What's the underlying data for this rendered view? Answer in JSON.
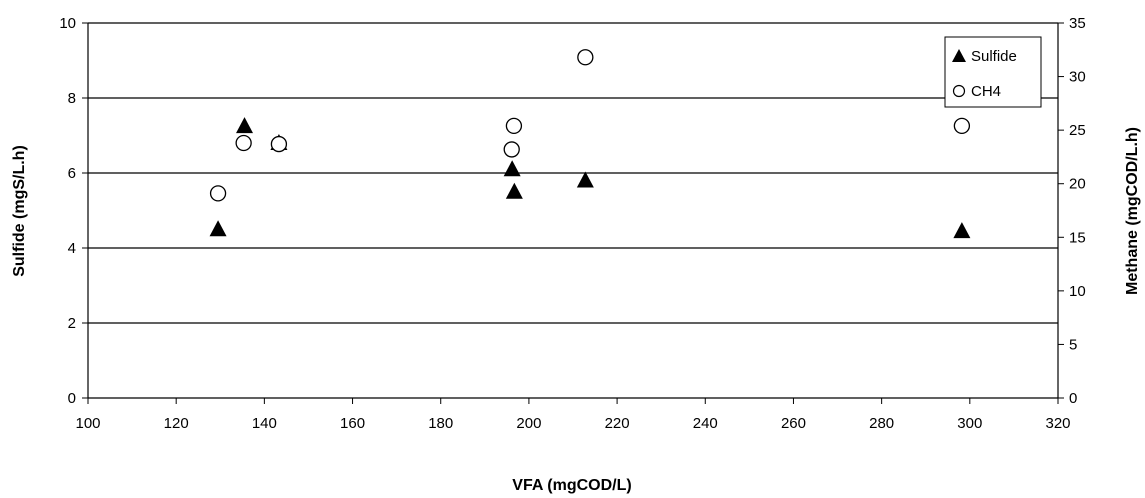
{
  "chart_data": {
    "type": "scatter",
    "xlabel": "VFA (mgCOD/L)",
    "ylabel": "Sulfide (mgS/L.h)",
    "y2label": "Methane (mgCOD/L.h)",
    "xlim": [
      100,
      320
    ],
    "ylim": [
      0,
      10
    ],
    "y2lim": [
      0,
      35
    ],
    "xticks": [
      "100",
      "120",
      "140",
      "160",
      "180",
      "200",
      "220",
      "240",
      "260",
      "280",
      "300",
      "320"
    ],
    "yticks": [
      "0",
      "2",
      "4",
      "6",
      "8",
      "10"
    ],
    "y2ticks": [
      "0",
      "5",
      "10",
      "15",
      "20",
      "25",
      "30",
      "35"
    ],
    "grid": "horizontal",
    "legend_position": "top-right",
    "series": [
      {
        "name": "Sulfide",
        "axis": "left",
        "marker": "filled-triangle",
        "color": "#000000",
        "points": [
          {
            "x": 129.5,
            "y": 4.5
          },
          {
            "x": 135.5,
            "y": 7.25
          },
          {
            "x": 143.3,
            "y": 6.8
          },
          {
            "x": 196.2,
            "y": 6.1
          },
          {
            "x": 196.7,
            "y": 5.5
          },
          {
            "x": 212.8,
            "y": 5.8
          },
          {
            "x": 298.2,
            "y": 4.45
          }
        ]
      },
      {
        "name": "CH4",
        "axis": "right",
        "marker": "open-circle",
        "color": "#000000",
        "points": [
          {
            "x": 129.5,
            "y": 19.1
          },
          {
            "x": 135.3,
            "y": 23.8
          },
          {
            "x": 143.3,
            "y": 23.7
          },
          {
            "x": 196.1,
            "y": 23.2
          },
          {
            "x": 196.6,
            "y": 25.4
          },
          {
            "x": 212.8,
            "y": 31.8
          },
          {
            "x": 298.2,
            "y": 25.4
          }
        ]
      }
    ]
  }
}
